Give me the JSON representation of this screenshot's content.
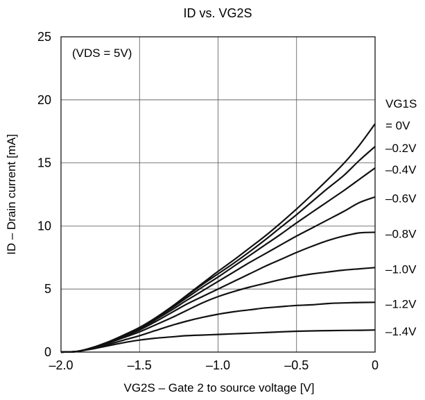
{
  "chart_data": {
    "type": "line",
    "title": "ID vs. VG2S",
    "xlabel": "VG2S – Gate 2 to source voltage [V]",
    "ylabel": "ID – Drain current [mA]",
    "xlim": [
      -2.0,
      0
    ],
    "ylim": [
      0,
      25
    ],
    "x_ticks": [
      -2.0,
      -1.5,
      -1.0,
      -0.5,
      0
    ],
    "x_tick_labels": [
      "–2.0",
      "–1.5",
      "–1.0",
      "–0.5",
      "0"
    ],
    "y_ticks": [
      0,
      5,
      10,
      15,
      20,
      25
    ],
    "y_tick_labels": [
      "0",
      "5",
      "10",
      "15",
      "20",
      "25"
    ],
    "grid": true,
    "condition_note": "(VDS = 5V)",
    "series_header": [
      "VG1S",
      "= 0V"
    ],
    "x": [
      -2.0,
      -1.9,
      -1.8,
      -1.7,
      -1.6,
      -1.5,
      -1.4,
      -1.3,
      -1.2,
      -1.1,
      -1.0,
      -0.9,
      -0.8,
      -0.7,
      -0.6,
      -0.5,
      -0.4,
      -0.3,
      -0.2,
      -0.1,
      0.0
    ],
    "series": [
      {
        "name": "= 0V",
        "values": [
          0,
          0.05,
          0.35,
          0.8,
          1.35,
          1.95,
          2.7,
          3.55,
          4.5,
          5.45,
          6.4,
          7.3,
          8.25,
          9.2,
          10.25,
          11.35,
          12.5,
          13.7,
          14.95,
          16.4,
          18.1
        ]
      },
      {
        "name": "–0.2V",
        "values": [
          0,
          0.05,
          0.35,
          0.8,
          1.35,
          1.95,
          2.7,
          3.55,
          4.45,
          5.35,
          6.2,
          7.05,
          7.95,
          8.9,
          9.9,
          10.9,
          11.95,
          13.0,
          14.0,
          15.2,
          16.3
        ]
      },
      {
        "name": "–0.4V",
        "values": [
          0,
          0.05,
          0.35,
          0.8,
          1.3,
          1.9,
          2.65,
          3.45,
          4.3,
          5.15,
          5.95,
          6.8,
          7.65,
          8.5,
          9.35,
          10.25,
          11.1,
          11.95,
          12.8,
          13.7,
          14.6
        ]
      },
      {
        "name": "–0.6V",
        "values": [
          0,
          0.05,
          0.35,
          0.8,
          1.3,
          1.85,
          2.55,
          3.3,
          4.1,
          4.85,
          5.6,
          6.35,
          7.1,
          7.8,
          8.5,
          9.2,
          9.85,
          10.5,
          11.15,
          11.85,
          12.3
        ]
      },
      {
        "name": "–0.8V",
        "values": [
          0,
          0.05,
          0.33,
          0.75,
          1.25,
          1.75,
          2.4,
          3.1,
          3.8,
          4.4,
          5.0,
          5.6,
          6.2,
          6.8,
          7.35,
          7.9,
          8.4,
          8.85,
          9.2,
          9.45,
          9.5
        ]
      },
      {
        "name": "–1.0V",
        "values": [
          0,
          0.05,
          0.3,
          0.7,
          1.15,
          1.6,
          2.15,
          2.7,
          3.3,
          3.9,
          4.4,
          4.8,
          5.15,
          5.45,
          5.75,
          6.0,
          6.2,
          6.35,
          6.5,
          6.6,
          6.7
        ]
      },
      {
        "name": "–1.2V",
        "values": [
          0,
          0.05,
          0.3,
          0.6,
          0.95,
          1.3,
          1.7,
          2.1,
          2.45,
          2.75,
          3.0,
          3.2,
          3.35,
          3.5,
          3.6,
          3.7,
          3.75,
          3.85,
          3.9,
          3.93,
          3.95
        ]
      },
      {
        "name": "–1.4V",
        "values": [
          0,
          0.05,
          0.25,
          0.5,
          0.75,
          0.95,
          1.1,
          1.2,
          1.3,
          1.35,
          1.4,
          1.45,
          1.5,
          1.55,
          1.6,
          1.65,
          1.68,
          1.7,
          1.72,
          1.73,
          1.75
        ]
      }
    ]
  }
}
